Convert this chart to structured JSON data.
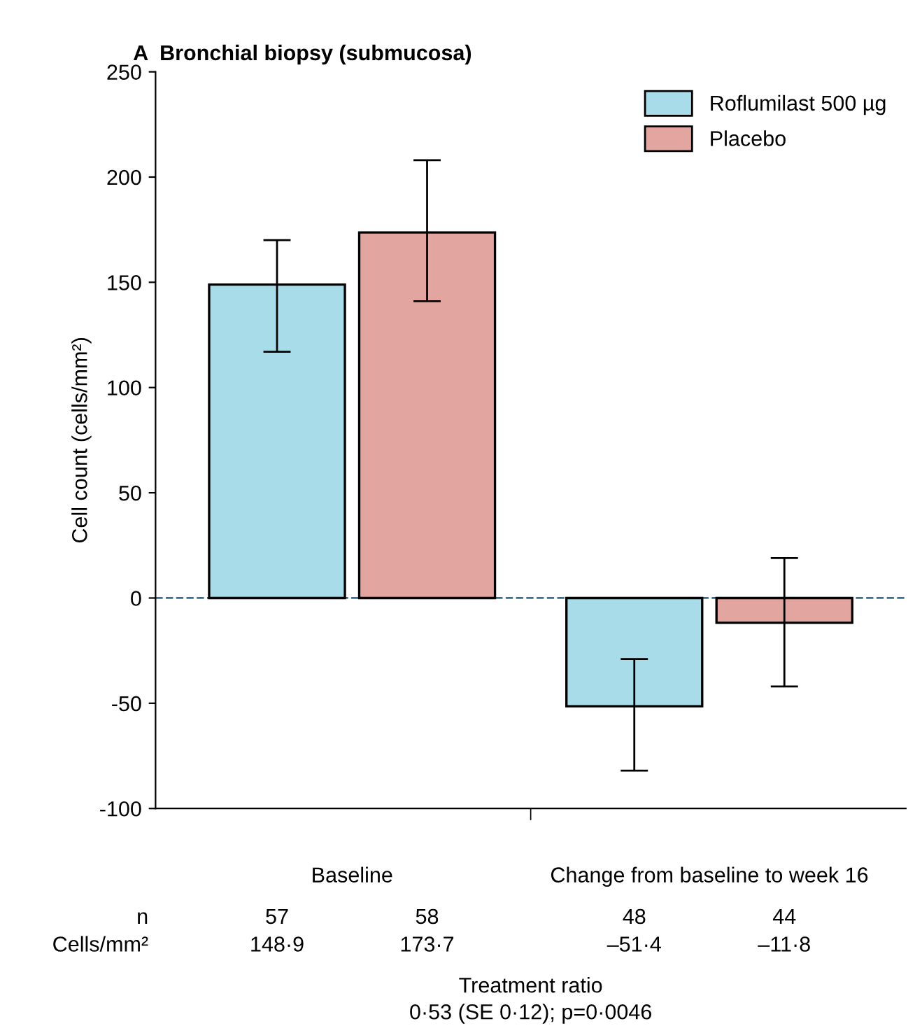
{
  "chart_data": {
    "type": "bar",
    "title": "A  Bronchial biopsy (submucosa)",
    "ylabel": "Cell count (cells/mm²)",
    "categories": [
      "Baseline",
      "Change from baseline to week 16"
    ],
    "series": [
      {
        "name": "Roflumilast 500 µg",
        "color": "#a8dce8",
        "values": [
          148.9,
          -51.4
        ],
        "errors": [
          [
            117,
            170
          ],
          [
            -82,
            -29
          ]
        ]
      },
      {
        "name": "Placebo",
        "color": "#e3a5a0",
        "values": [
          173.7,
          -11.8
        ],
        "errors": [
          [
            141,
            208
          ],
          [
            -42,
            19
          ]
        ]
      }
    ],
    "ylim": [
      -100,
      250
    ],
    "yticks": [
      -100,
      -50,
      0,
      50,
      100,
      150,
      200,
      250
    ],
    "ref_lines": [
      {
        "axis": "y",
        "value": 0,
        "color": "#3a6f8f",
        "line_style": "dashed"
      }
    ],
    "legend": "top right",
    "grid": false,
    "annotations": [
      "n",
      "57",
      "58",
      "48",
      "44",
      "Cells/mm²",
      "148·9",
      "173·7",
      "–51·4",
      "–11·8",
      "Treatment ratio",
      "0·53 (SE 0·12); p=0·0046"
    ]
  }
}
